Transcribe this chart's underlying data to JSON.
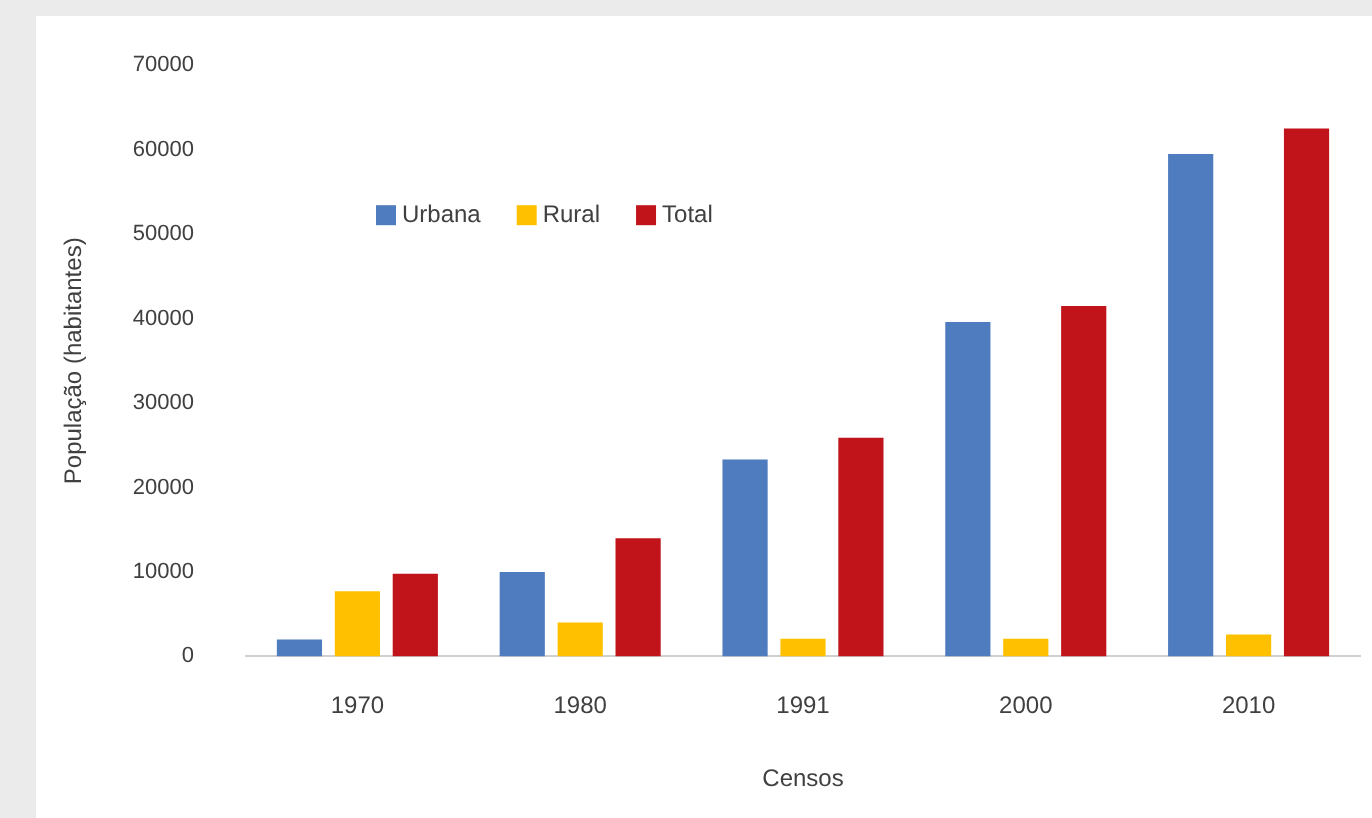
{
  "chart_data": {
    "type": "bar",
    "xlabel": "Censos",
    "ylabel": "População (habitantes)",
    "categories": [
      "1970",
      "1980",
      "1991",
      "2000",
      "2010"
    ],
    "series": [
      {
        "name": "Urbana",
        "color": "#4f7bbf",
        "values": [
          2000,
          10000,
          23300,
          39600,
          59500
        ]
      },
      {
        "name": "Rural",
        "color": "#ffc000",
        "values": [
          7700,
          4000,
          2100,
          2100,
          2600
        ]
      },
      {
        "name": "Total",
        "color": "#c0141a",
        "values": [
          9800,
          14000,
          25900,
          41500,
          62500
        ]
      }
    ],
    "ylim": [
      0,
      70000
    ],
    "yticks": [
      0,
      10000,
      20000,
      30000,
      40000,
      50000,
      60000,
      70000
    ],
    "grid": false,
    "legend": "top left"
  }
}
